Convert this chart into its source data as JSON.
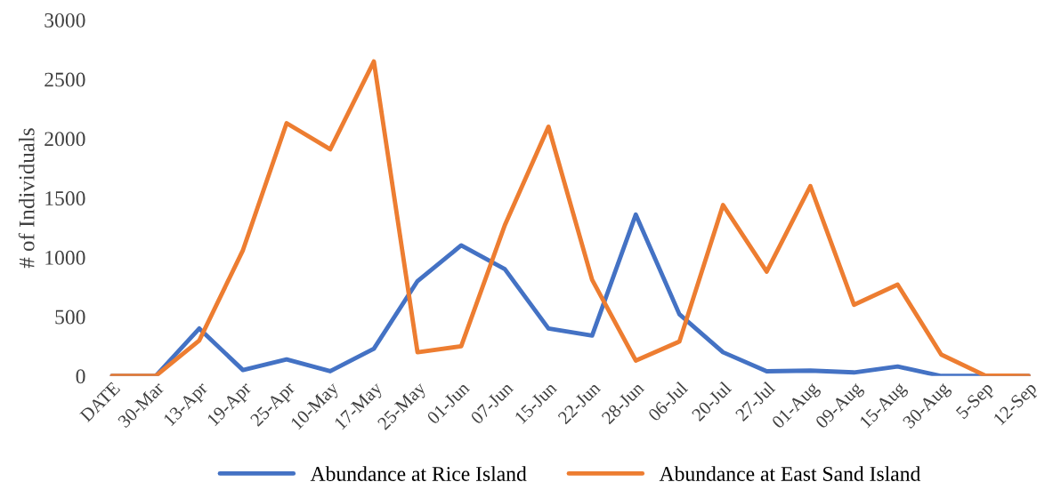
{
  "chart_data": {
    "type": "line",
    "ylabel": "# of Individuals",
    "categories": [
      "DATE",
      "30-Mar",
      "13-Apr",
      "19-Apr",
      "25-Apr",
      "10-May",
      "17-May",
      "25-May",
      "01-Jun",
      "07-Jun",
      "15-Jun",
      "22-Jun",
      "28-Jun",
      "06-Jul",
      "20-Jul",
      "27-Jul",
      "01-Aug",
      "09-Aug",
      "15-Aug",
      "30-Aug",
      "5-Sep",
      "12-Sep"
    ],
    "series": [
      {
        "name": "Abundance at Rice Island",
        "color": "#4472c4",
        "values": [
          0,
          0,
          400,
          50,
          140,
          40,
          230,
          800,
          1100,
          900,
          400,
          340,
          1360,
          520,
          200,
          40,
          45,
          30,
          80,
          0,
          0,
          0
        ]
      },
      {
        "name": "Abundance at East Sand Island",
        "color": "#ed7d31",
        "values": [
          0,
          0,
          300,
          1060,
          2130,
          1910,
          2650,
          200,
          250,
          1270,
          2100,
          810,
          130,
          290,
          1440,
          880,
          1600,
          600,
          770,
          180,
          5,
          0
        ]
      }
    ],
    "ylim": [
      0,
      3000
    ],
    "yticks": [
      0,
      500,
      1000,
      1500,
      2000,
      2500,
      3000
    ],
    "grid": false,
    "legend": "bottom",
    "marker": "none",
    "line_style": "solid"
  }
}
